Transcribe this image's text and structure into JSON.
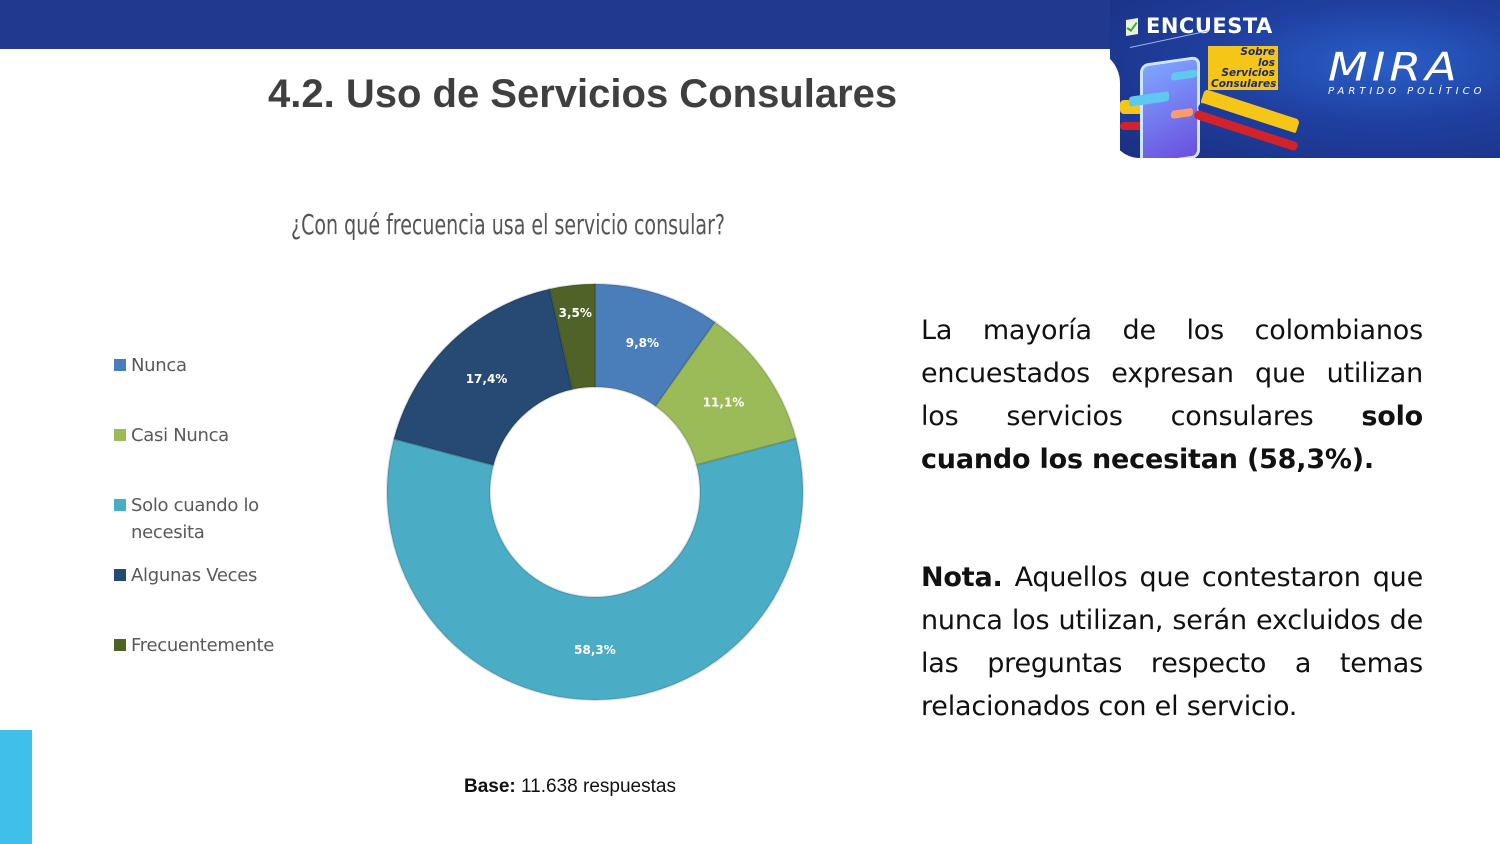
{
  "header": {
    "page_title": "4.2. Uso de Servicios Consulares"
  },
  "banner": {
    "survey_label": "ENCUESTA",
    "survey_subtitle_lines": [
      "Sobre",
      "los",
      "Servicios",
      "Consulares"
    ],
    "brand_name": "MIRA",
    "brand_tagline": "PARTIDO POLÍTICO",
    "colors": {
      "band": "#213a8f",
      "flag_yellow": "#f5c518",
      "flag_blue": "#1d3a9a",
      "flag_red": "#d2232a"
    }
  },
  "chart_data": {
    "type": "pie",
    "subtype": "donut",
    "title": "¿Con qué frecuencia usa el servicio consular?",
    "categories": [
      "Nunca",
      "Casi Nunca",
      "Solo cuando lo necesita",
      "Algunas Veces",
      "Frecuentemente"
    ],
    "values": [
      9.8,
      11.1,
      58.3,
      17.4,
      3.5
    ],
    "value_labels": [
      "9,8%",
      "11,1%",
      "58,3%",
      "17,4%",
      "3,5%"
    ],
    "colors": [
      "#4a7ebb",
      "#9bbb59",
      "#4bacc6",
      "#264a73",
      "#4f6228"
    ],
    "legend_position": "left",
    "start_angle": "top, clockwise",
    "unit": "%"
  },
  "legend": {
    "items": [
      {
        "label_line1": "Nunca",
        "label_line2": ""
      },
      {
        "label_line1": "Casi Nunca",
        "label_line2": ""
      },
      {
        "label_line1": "Solo cuando lo",
        "label_line2": "necesita"
      },
      {
        "label_line1": "Algunas Veces",
        "label_line2": ""
      },
      {
        "label_line1": "Frecuentemente",
        "label_line2": ""
      }
    ]
  },
  "analysis": {
    "paragraph1_plain": "La mayoría de los colombianos encuestados expresan que utilizan los servicios consulares ",
    "paragraph1_bold": "solo cuando los necesitan (58,3%).",
    "note_bold": "Nota.",
    "note_text": " Aquellos que contestaron que nunca los utilizan, serán excluidos de las preguntas respecto a temas relacionados con el servicio."
  },
  "footer": {
    "base_label": "Base:",
    "base_value": " 11.638 respuestas"
  }
}
